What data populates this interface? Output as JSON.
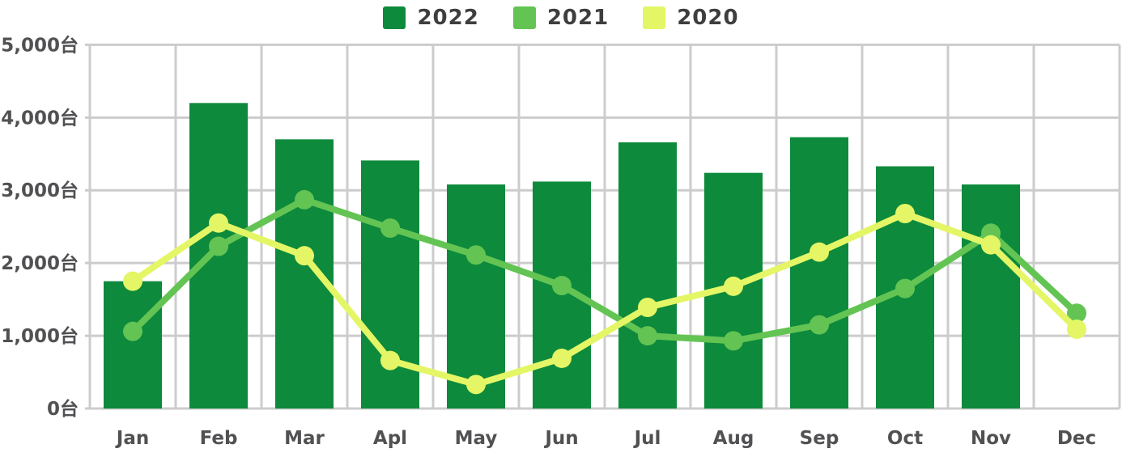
{
  "legend": {
    "items": [
      {
        "label": "2022",
        "color": "#0d8a3c"
      },
      {
        "label": "2021",
        "color": "#63c453"
      },
      {
        "label": "2020",
        "color": "#e4f666"
      }
    ]
  },
  "colors": {
    "background": "#ffffff",
    "grid": "#cccccc",
    "axis_text": "#515154",
    "legend_text": "#3e3e3e",
    "bar_2022": "#0d8a3c",
    "line_2021": "#63c453",
    "line_2020": "#e4f666"
  },
  "chart_data": {
    "type": "bar",
    "subtype": "combo-bar-line",
    "title": "",
    "xlabel": "",
    "ylabel": "",
    "unit": "台",
    "categories": [
      "Jan",
      "Feb",
      "Mar",
      "Apl",
      "May",
      "Jun",
      "Jul",
      "Aug",
      "Sep",
      "Oct",
      "Nov",
      "Dec"
    ],
    "series": [
      {
        "name": "2022",
        "type": "bar",
        "color": "#0d8a3c",
        "values": [
          1750,
          4200,
          3700,
          3410,
          3080,
          3120,
          3660,
          3240,
          3730,
          3330,
          3080,
          null
        ]
      },
      {
        "name": "2021",
        "type": "line",
        "color": "#63c453",
        "values": [
          1060,
          2230,
          2870,
          2480,
          2110,
          1690,
          1000,
          930,
          1150,
          1650,
          2410,
          1310
        ]
      },
      {
        "name": "2020",
        "type": "line",
        "color": "#e4f666",
        "values": [
          1750,
          2550,
          2100,
          660,
          330,
          690,
          1390,
          1680,
          2150,
          2680,
          2250,
          1090
        ]
      }
    ],
    "y_ticks": [
      "0台",
      "1,000台",
      "2,000台",
      "3,000台",
      "4,000台",
      "5,000台"
    ],
    "y_tick_values": [
      0,
      1000,
      2000,
      3000,
      4000,
      5000
    ],
    "ylim": [
      0,
      5000
    ],
    "grid": true,
    "legend_position": "top"
  }
}
